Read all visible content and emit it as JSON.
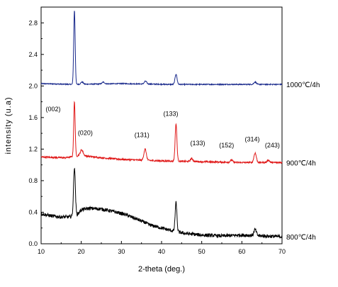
{
  "chart_data": {
    "type": "line",
    "xlabel": "2-theta (deg.)",
    "ylabel": "intensity (u.a)",
    "xlim": [
      10,
      70
    ],
    "ylim": [
      0.0,
      3.0
    ],
    "x_ticks": [
      "10",
      "20",
      "30",
      "40",
      "50",
      "60",
      "70"
    ],
    "y_ticks": [
      "0.0",
      "0.4",
      "0.8",
      "1.2",
      "1.6",
      "2.0",
      "2.4",
      "2.8"
    ],
    "grid": false,
    "series": [
      {
        "name": "1000℃/4h",
        "color": "#1a2a8c",
        "baseline": [
          [
            10,
            2.03
          ],
          [
            18,
            2.02
          ],
          [
            30,
            2.03
          ],
          [
            42,
            2.02
          ],
          [
            50,
            2.02
          ],
          [
            60,
            2.02
          ],
          [
            70,
            2.02
          ]
        ],
        "peaks": [
          {
            "x": 18.3,
            "y": 2.96,
            "w": 0.18
          },
          {
            "x": 20.2,
            "y": 2.05,
            "w": 0.3
          },
          {
            "x": 25.5,
            "y": 2.05,
            "w": 0.3
          },
          {
            "x": 36.0,
            "y": 2.06,
            "w": 0.3
          },
          {
            "x": 43.6,
            "y": 2.15,
            "w": 0.25
          },
          {
            "x": 63.3,
            "y": 2.05,
            "w": 0.3
          }
        ],
        "noise": 0.006
      },
      {
        "name": "900℃/4h",
        "color": "#e01818",
        "baseline": [
          [
            10,
            1.1
          ],
          [
            16,
            1.09
          ],
          [
            20,
            1.12
          ],
          [
            25,
            1.09
          ],
          [
            30,
            1.07
          ],
          [
            35,
            1.06
          ],
          [
            40,
            1.05
          ],
          [
            50,
            1.04
          ],
          [
            60,
            1.03
          ],
          [
            70,
            1.03
          ]
        ],
        "peaks": [
          {
            "x": 18.3,
            "y": 1.8,
            "w": 0.18
          },
          {
            "x": 20.1,
            "y": 1.19,
            "w": 0.35
          },
          {
            "x": 35.9,
            "y": 1.2,
            "w": 0.3
          },
          {
            "x": 43.6,
            "y": 1.52,
            "w": 0.22
          },
          {
            "x": 47.5,
            "y": 1.08,
            "w": 0.3
          },
          {
            "x": 57.4,
            "y": 1.06,
            "w": 0.3
          },
          {
            "x": 63.3,
            "y": 1.15,
            "w": 0.3
          },
          {
            "x": 66.6,
            "y": 1.06,
            "w": 0.3
          }
        ],
        "noise": 0.01
      },
      {
        "name": "800℃/4h",
        "color": "#000000",
        "baseline": [
          [
            10,
            0.38
          ],
          [
            13,
            0.35
          ],
          [
            15,
            0.34
          ],
          [
            17,
            0.34
          ],
          [
            19,
            0.37
          ],
          [
            20,
            0.43
          ],
          [
            22,
            0.45
          ],
          [
            25,
            0.44
          ],
          [
            28,
            0.41
          ],
          [
            31,
            0.37
          ],
          [
            34,
            0.31
          ],
          [
            37,
            0.24
          ],
          [
            40,
            0.2
          ],
          [
            43,
            0.16
          ],
          [
            46,
            0.13
          ],
          [
            50,
            0.11
          ],
          [
            55,
            0.1
          ],
          [
            60,
            0.11
          ],
          [
            65,
            0.1
          ],
          [
            70,
            0.09
          ]
        ],
        "peaks": [
          {
            "x": 18.3,
            "y": 0.97,
            "w": 0.22
          },
          {
            "x": 35.9,
            "y": 0.27,
            "w": 0.3
          },
          {
            "x": 43.6,
            "y": 0.52,
            "w": 0.22
          },
          {
            "x": 63.3,
            "y": 0.18,
            "w": 0.3
          }
        ],
        "noise": 0.022
      }
    ],
    "annotations": [
      {
        "text": "(002)",
        "x": 13.0,
        "y": 1.68
      },
      {
        "text": "(020)",
        "x": 21.0,
        "y": 1.38
      },
      {
        "text": "(131)",
        "x": 35.1,
        "y": 1.35
      },
      {
        "text": "(133)",
        "x": 42.3,
        "y": 1.62
      },
      {
        "text": "(133)",
        "x": 49.0,
        "y": 1.25
      },
      {
        "text": "(152)",
        "x": 56.2,
        "y": 1.22
      },
      {
        "text": "(314)",
        "x": 62.6,
        "y": 1.3
      },
      {
        "text": "(243)",
        "x": 67.6,
        "y": 1.22
      }
    ]
  }
}
